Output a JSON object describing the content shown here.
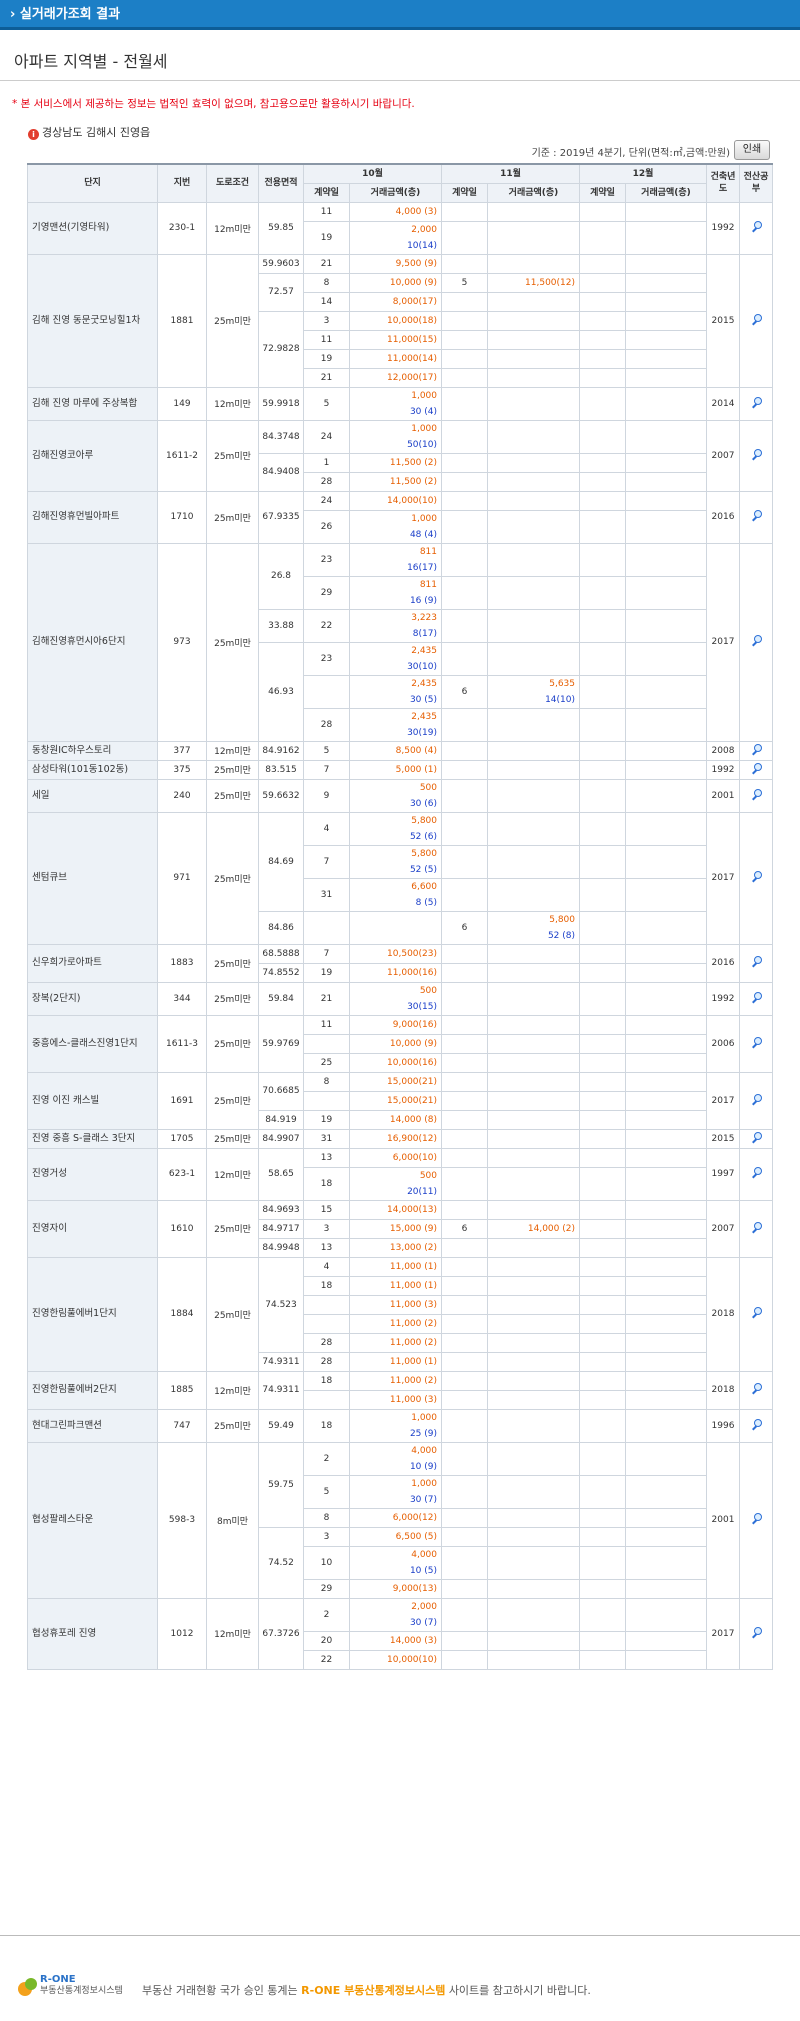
{
  "header": {
    "title": "› 실거래가조회 결과"
  },
  "page": {
    "title": "아파트 지역별 - 전월세"
  },
  "notice": "* 본 서비스에서 제공하는 정보는 법적인 효력이 없으며, 참고용으로만 활용하시기 바랍니다.",
  "region": "경상남도 김해시 진영읍",
  "basis": "기준 : 2019년 4분기, 단위(면적:㎡,금액:만원)",
  "print_label": "인쇄",
  "table": {
    "h": {
      "complex": "단지",
      "lot": "지번",
      "road": "도로조건",
      "area": "전용면적",
      "m10": "10월",
      "m11": "11월",
      "m12": "12월",
      "date": "계약일",
      "amount": "거래금액(층)",
      "year": "건축년도",
      "doc": "전산공부"
    },
    "rows": [
      [
        "기영맨션(기영타워)",
        "230-1",
        "12m미만",
        "59.85",
        "11",
        "4,000 (3)",
        "",
        "",
        "",
        "",
        "1992"
      ],
      [
        "",
        "",
        "",
        "",
        "19",
        "2,000|10(14)",
        "",
        "",
        "",
        "",
        ""
      ],
      [
        "김해 진영 동문굿모닝힐1차",
        "1881",
        "25m미만",
        "59.9603",
        "21",
        "9,500 (9)",
        "",
        "",
        "",
        "",
        "2015"
      ],
      [
        "",
        "",
        "",
        "72.57",
        "8",
        "10,000 (9)",
        "5",
        "11,500(12)",
        "",
        "",
        ""
      ],
      [
        "",
        "",
        "",
        "",
        "14",
        "8,000(17)",
        "",
        "",
        "",
        "",
        ""
      ],
      [
        "",
        "",
        "",
        "72.9828",
        "3",
        "10,000(18)",
        "",
        "",
        "",
        "",
        ""
      ],
      [
        "",
        "",
        "",
        "",
        "11",
        "11,000(15)",
        "",
        "",
        "",
        "",
        ""
      ],
      [
        "",
        "",
        "",
        "",
        "19",
        "11,000(14)",
        "",
        "",
        "",
        "",
        ""
      ],
      [
        "",
        "",
        "",
        "",
        "21",
        "12,000(17)",
        "",
        "",
        "",
        "",
        ""
      ],
      [
        "김해 진영 마루에 주상복합",
        "149",
        "12m미만",
        "59.9918",
        "5",
        "1,000|30 (4)",
        "",
        "",
        "",
        "",
        "2014"
      ],
      [
        "김해진영코아루",
        "1611-2",
        "25m미만",
        "84.3748",
        "24",
        "1,000|50(10)",
        "",
        "",
        "",
        "",
        "2007"
      ],
      [
        "",
        "",
        "",
        "84.9408",
        "1",
        "11,500 (2)",
        "",
        "",
        "",
        "",
        ""
      ],
      [
        "",
        "",
        "",
        "",
        "28",
        "11,500 (2)",
        "",
        "",
        "",
        "",
        ""
      ],
      [
        "김해진영휴먼빌아파트",
        "1710",
        "25m미만",
        "67.9335",
        "24",
        "14,000(10)",
        "",
        "",
        "",
        "",
        "2016"
      ],
      [
        "",
        "",
        "",
        "",
        "26",
        "1,000|48 (4)",
        "",
        "",
        "",
        "",
        ""
      ],
      [
        "김해진영휴먼시아6단지",
        "973",
        "25m미만",
        "26.8",
        "23",
        "811|16(17)",
        "",
        "",
        "",
        "",
        "2017"
      ],
      [
        "",
        "",
        "",
        "",
        "29",
        "811|16 (9)",
        "",
        "",
        "",
        "",
        ""
      ],
      [
        "",
        "",
        "",
        "33.88",
        "22",
        "3,223|8(17)",
        "",
        "",
        "",
        "",
        ""
      ],
      [
        "",
        "",
        "",
        "46.93",
        "23",
        "2,435|30(10)",
        "",
        "",
        "",
        "",
        ""
      ],
      [
        "",
        "",
        "",
        "",
        "",
        "2,435|30 (5)",
        "6",
        "5,635|14(10)",
        "",
        "",
        ""
      ],
      [
        "",
        "",
        "",
        "",
        "28",
        "2,435|30(19)",
        "",
        "",
        "",
        "",
        ""
      ],
      [
        "동창원IC하우스토리",
        "377",
        "12m미만",
        "84.9162",
        "5",
        "8,500 (4)",
        "",
        "",
        "",
        "",
        "2008"
      ],
      [
        "삼성타워(101동102동)",
        "375",
        "25m미만",
        "83.515",
        "7",
        "5,000 (1)",
        "",
        "",
        "",
        "",
        "1992"
      ],
      [
        "세일",
        "240",
        "25m미만",
        "59.6632",
        "9",
        "500|30 (6)",
        "",
        "",
        "",
        "",
        "2001"
      ],
      [
        "센텀큐브",
        "971",
        "25m미만",
        "84.69",
        "4",
        "5,800|52 (6)",
        "",
        "",
        "",
        "",
        "2017"
      ],
      [
        "",
        "",
        "",
        "",
        "7",
        "5,800|52 (5)",
        "",
        "",
        "",
        "",
        ""
      ],
      [
        "",
        "",
        "",
        "",
        "31",
        "6,600|8 (5)",
        "",
        "",
        "",
        "",
        ""
      ],
      [
        "",
        "",
        "",
        "84.86",
        "",
        "",
        "6",
        "5,800|52 (8)",
        "",
        "",
        ""
      ],
      [
        "신우희가로아파트",
        "1883",
        "25m미만",
        "68.5888",
        "7",
        "10,500(23)",
        "",
        "",
        "",
        "",
        "2016"
      ],
      [
        "",
        "",
        "",
        "74.8552",
        "19",
        "11,000(16)",
        "",
        "",
        "",
        "",
        ""
      ],
      [
        "장복(2단지)",
        "344",
        "25m미만",
        "59.84",
        "21",
        "500|30(15)",
        "",
        "",
        "",
        "",
        "1992"
      ],
      [
        "중흥에스-클래스진영1단지",
        "1611-3",
        "25m미만",
        "59.9769",
        "11",
        "9,000(16)",
        "",
        "",
        "",
        "",
        "2006"
      ],
      [
        "",
        "",
        "",
        "",
        "",
        "10,000 (9)",
        "",
        "",
        "",
        "",
        ""
      ],
      [
        "",
        "",
        "",
        "",
        "25",
        "10,000(16)",
        "",
        "",
        "",
        "",
        ""
      ],
      [
        "진영 이진 캐스빌",
        "1691",
        "25m미만",
        "70.6685",
        "8",
        "15,000(21)",
        "",
        "",
        "",
        "",
        "2017"
      ],
      [
        "",
        "",
        "",
        "",
        "",
        "15,000(21)",
        "",
        "",
        "",
        "",
        ""
      ],
      [
        "",
        "",
        "",
        "84.919",
        "19",
        "14,000 (8)",
        "",
        "",
        "",
        "",
        ""
      ],
      [
        "진영 중흥 S-클래스 3단지",
        "1705",
        "25m미만",
        "84.9907",
        "31",
        "16,900(12)",
        "",
        "",
        "",
        "",
        "2015"
      ],
      [
        "진영거성",
        "623-1",
        "12m미만",
        "58.65",
        "13",
        "6,000(10)",
        "",
        "",
        "",
        "",
        "1997"
      ],
      [
        "",
        "",
        "",
        "",
        "18",
        "500|20(11)",
        "",
        "",
        "",
        "",
        ""
      ],
      [
        "진영자이",
        "1610",
        "25m미만",
        "84.9693",
        "15",
        "14,000(13)",
        "",
        "",
        "",
        "",
        "2007"
      ],
      [
        "",
        "",
        "",
        "84.9717",
        "3",
        "15,000 (9)",
        "6",
        "14,000 (2)",
        "",
        "",
        ""
      ],
      [
        "",
        "",
        "",
        "84.9948",
        "13",
        "13,000 (2)",
        "",
        "",
        "",
        "",
        ""
      ],
      [
        "진영한림풀에버1단지",
        "1884",
        "25m미만",
        "74.523",
        "4",
        "11,000 (1)",
        "",
        "",
        "",
        "",
        "2018"
      ],
      [
        "",
        "",
        "",
        "",
        "18",
        "11,000 (1)",
        "",
        "",
        "",
        "",
        ""
      ],
      [
        "",
        "",
        "",
        "",
        "",
        "11,000 (3)",
        "",
        "",
        "",
        "",
        ""
      ],
      [
        "",
        "",
        "",
        "",
        "",
        "11,000 (2)",
        "",
        "",
        "",
        "",
        ""
      ],
      [
        "",
        "",
        "",
        "",
        "28",
        "11,000 (2)",
        "",
        "",
        "",
        "",
        ""
      ],
      [
        "",
        "",
        "",
        "74.9311",
        "28",
        "11,000 (1)",
        "",
        "",
        "",
        "",
        ""
      ],
      [
        "진영한림풀에버2단지",
        "1885",
        "12m미만",
        "74.9311",
        "18",
        "11,000 (2)",
        "",
        "",
        "",
        "",
        "2018"
      ],
      [
        "",
        "",
        "",
        "",
        "",
        "11,000 (3)",
        "",
        "",
        "",
        "",
        ""
      ],
      [
        "현대그린파크맨션",
        "747",
        "25m미만",
        "59.49",
        "18",
        "1,000|25 (9)",
        "",
        "",
        "",
        "",
        "1996"
      ],
      [
        "협성팔레스타운",
        "598-3",
        "8m미만",
        "59.75",
        "2",
        "4,000|10 (9)",
        "",
        "",
        "",
        "",
        "2001"
      ],
      [
        "",
        "",
        "",
        "",
        "5",
        "1,000|30 (7)",
        "",
        "",
        "",
        "",
        ""
      ],
      [
        "",
        "",
        "",
        "",
        "8",
        "6,000(12)",
        "",
        "",
        "",
        "",
        ""
      ],
      [
        "",
        "",
        "",
        "74.52",
        "3",
        "6,500 (5)",
        "",
        "",
        "",
        "",
        ""
      ],
      [
        "",
        "",
        "",
        "",
        "10",
        "4,000|10 (5)",
        "",
        "",
        "",
        "",
        ""
      ],
      [
        "",
        "",
        "",
        "",
        "29",
        "9,000(13)",
        "",
        "",
        "",
        "",
        ""
      ],
      [
        "협성휴포레 진영",
        "1012",
        "12m미만",
        "67.3726",
        "2",
        "2,000|30 (7)",
        "",
        "",
        "",
        "",
        "2017"
      ],
      [
        "",
        "",
        "",
        "",
        "20",
        "14,000 (3)",
        "",
        "",
        "",
        "",
        ""
      ],
      [
        "",
        "",
        "",
        "",
        "22",
        "10,000(10)",
        "",
        "",
        "",
        "",
        ""
      ]
    ]
  },
  "footer": {
    "brand_top": "R-ONE",
    "brand_bottom": "부동산통계정보시스템",
    "pre": "부동산 거래현황 국가 승인 통계는",
    "link": "R-ONE 부동산통계정보시스템",
    "post": "사이트를 참고하시기 바랍니다."
  },
  "colors": {
    "header_bg": "#1c7fc6",
    "deposit": "#e65e00",
    "rent": "#1a3ec8",
    "notice": "#e60012"
  }
}
